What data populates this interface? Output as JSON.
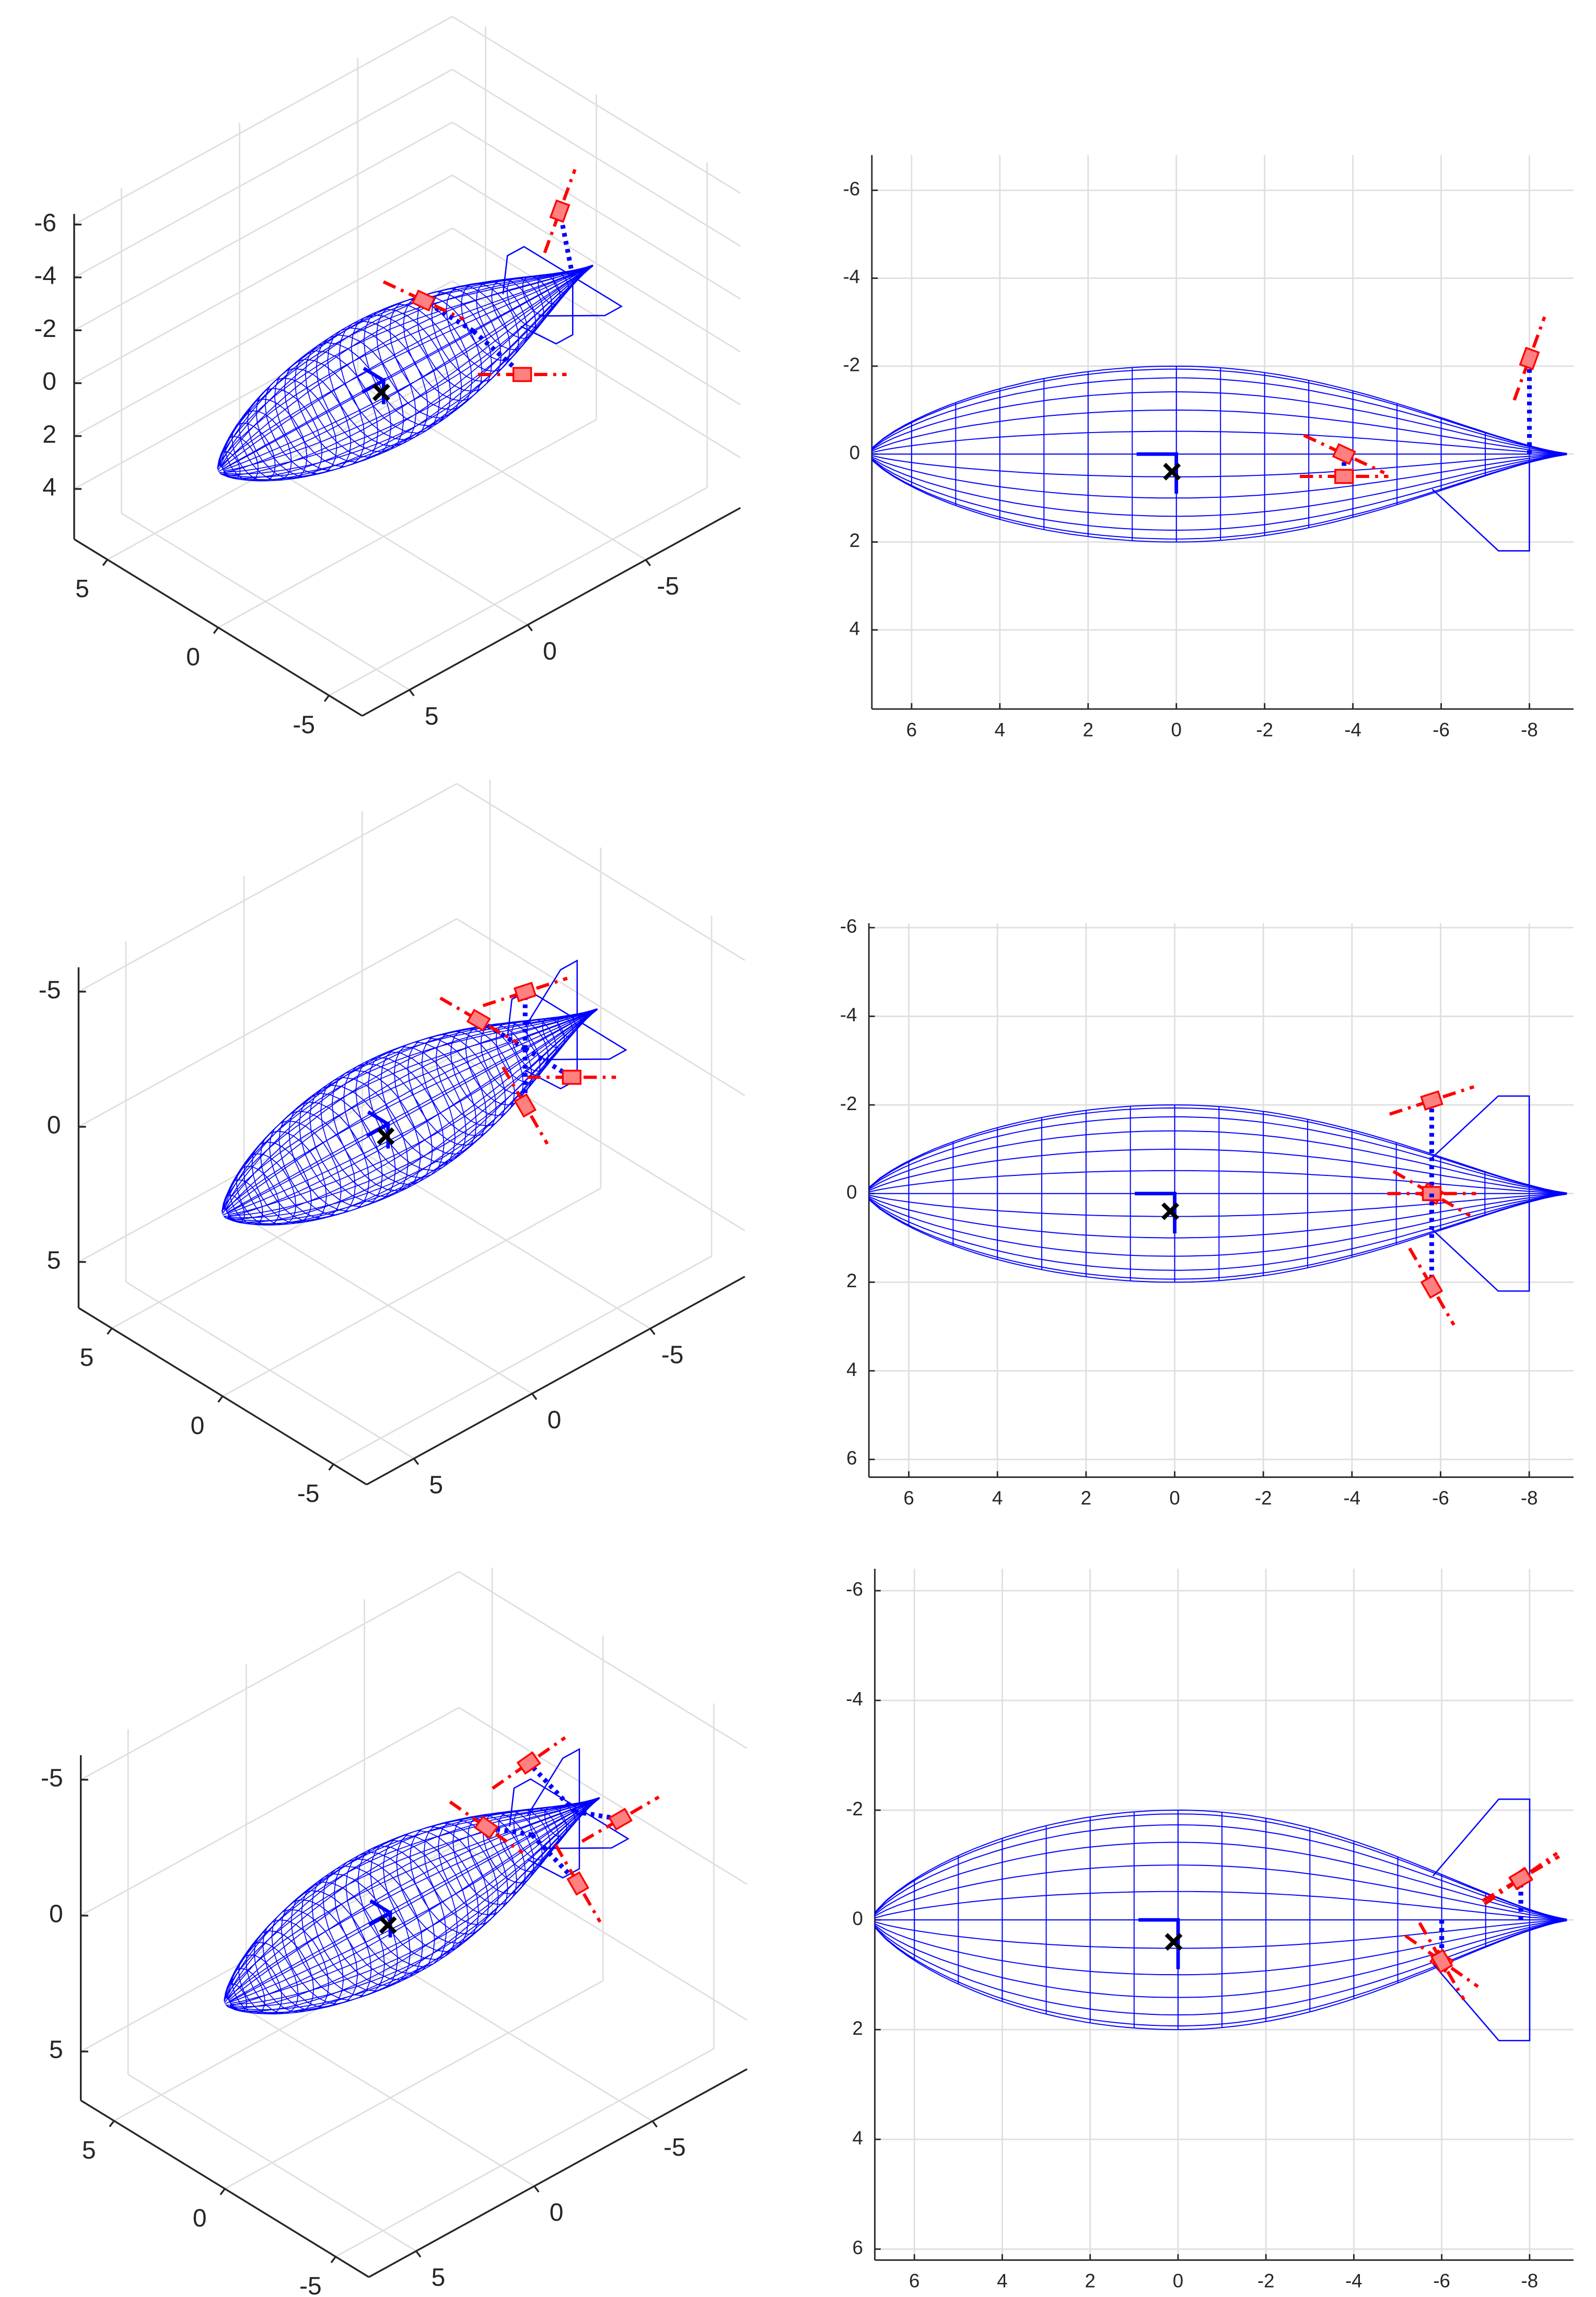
{
  "chart_data": [
    {
      "type": "3d",
      "xlim": [
        -9,
        7
      ],
      "ylim": [
        -6.5,
        6.5
      ],
      "zlim": [
        -6.4,
        5.9
      ],
      "xticks": [
        -5,
        0,
        5
      ],
      "yticks": [
        -5,
        0,
        5
      ],
      "zticks": [
        -6,
        -4,
        -2,
        0,
        2,
        4
      ],
      "grid": true
    },
    {
      "type": "2d",
      "xlim": [
        6.9,
        -9
      ],
      "ylim": [
        -6.8,
        5.8
      ],
      "xticks": [
        6,
        4,
        2,
        0,
        -2,
        -4,
        -6,
        -8
      ],
      "yticks": [
        -6,
        -4,
        -2,
        0,
        2,
        4
      ],
      "grid": true
    },
    {
      "type": "3d",
      "xlim": [
        -9,
        7
      ],
      "ylim": [
        -6.5,
        6.5
      ],
      "zlim": [
        -5.9,
        6.7
      ],
      "xticks": [
        -5,
        0,
        5
      ],
      "yticks": [
        -5,
        0,
        5
      ],
      "zticks": [
        -5,
        0,
        5
      ],
      "grid": true
    },
    {
      "type": "2d",
      "xlim": [
        6.9,
        -9
      ],
      "ylim": [
        -6.1,
        6.4
      ],
      "xticks": [
        6,
        4,
        2,
        0,
        -2,
        -4,
        -6,
        -8
      ],
      "yticks": [
        -6,
        -4,
        -2,
        0,
        2,
        4,
        6
      ],
      "grid": true
    },
    {
      "type": "3d",
      "xlim": [
        -9,
        7
      ],
      "ylim": [
        -6.5,
        6.5
      ],
      "zlim": [
        -5.9,
        6.8
      ],
      "xticks": [
        -5,
        0,
        5
      ],
      "yticks": [
        -5,
        0,
        5
      ],
      "zticks": [
        -5,
        0,
        5
      ],
      "grid": true
    },
    {
      "type": "2d",
      "xlim": [
        6.9,
        -9
      ],
      "ylim": [
        -6.4,
        6.2
      ],
      "xticks": [
        6,
        4,
        2,
        0,
        -2,
        -4,
        -6,
        -8
      ],
      "yticks": [
        -6,
        -4,
        -2,
        0,
        2,
        4,
        6
      ],
      "grid": true
    }
  ]
}
